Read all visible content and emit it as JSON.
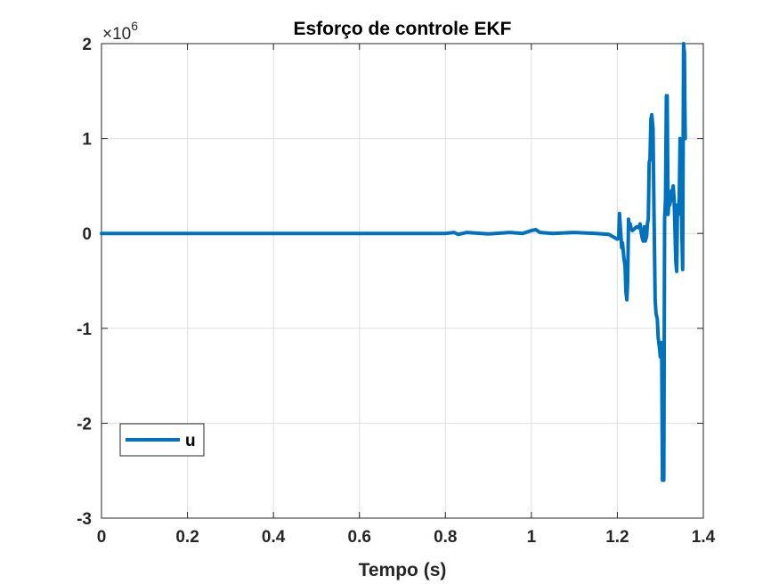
{
  "chart_data": {
    "type": "line",
    "title": "Esforço de controle EKF",
    "xlabel": "Tempo (s)",
    "ylabel": "",
    "xlim": [
      0,
      1.4
    ],
    "ylim": [
      -3,
      2
    ],
    "y_multiplier": "×10",
    "y_multiplier_exp": "6",
    "xticks": [
      0,
      0.2,
      0.4,
      0.6,
      0.8,
      1,
      1.2,
      1.4
    ],
    "xtick_labels": [
      "0",
      "0.2",
      "0.4",
      "0.6",
      "0.8",
      "1",
      "1.2",
      "1.4"
    ],
    "yticks": [
      -3,
      -2,
      -1,
      0,
      1,
      2
    ],
    "ytick_labels": [
      "-3",
      "-2",
      "-1",
      "0",
      "1",
      "2"
    ],
    "grid": true,
    "legend_position": "lower-left",
    "color": "#0072BD",
    "series": [
      {
        "name": "u",
        "x": [
          0,
          0.2,
          0.4,
          0.6,
          0.8,
          0.82,
          0.83,
          0.85,
          0.9,
          0.95,
          0.98,
          1.0,
          1.01,
          1.02,
          1.05,
          1.1,
          1.15,
          1.18,
          1.2,
          1.203,
          1.205,
          1.208,
          1.21,
          1.212,
          1.215,
          1.218,
          1.22,
          1.222,
          1.224,
          1.226,
          1.228,
          1.23,
          1.232,
          1.235,
          1.24,
          1.245,
          1.25,
          1.253,
          1.255,
          1.258,
          1.26,
          1.263,
          1.265,
          1.268,
          1.27,
          1.272,
          1.274,
          1.276,
          1.278,
          1.28,
          1.283,
          1.285,
          1.288,
          1.29,
          1.293,
          1.295,
          1.298,
          1.3,
          1.303,
          1.305,
          1.308,
          1.31,
          1.312,
          1.314,
          1.316,
          1.318,
          1.32,
          1.322,
          1.324,
          1.326,
          1.328,
          1.33,
          1.332,
          1.334,
          1.336,
          1.338,
          1.34,
          1.342,
          1.344,
          1.346,
          1.348,
          1.35,
          1.352,
          1.354,
          1.356,
          1.357,
          1.358
        ],
        "y": [
          0,
          0,
          0,
          0,
          0,
          0.01,
          -0.01,
          0.01,
          -0.005,
          0.01,
          0.0,
          0.03,
          0.04,
          0.01,
          0.0,
          0.01,
          0.0,
          -0.01,
          -0.06,
          -0.05,
          0.21,
          0.0,
          -0.15,
          -0.1,
          -0.25,
          -0.35,
          -0.62,
          -0.7,
          -0.5,
          0.15,
          0.05,
          0.1,
          0.05,
          0.03,
          0.05,
          0.07,
          0.06,
          0.1,
          0.02,
          -0.05,
          -0.08,
          0.07,
          -0.08,
          -0.03,
          0.1,
          0.15,
          0.75,
          0.78,
          1.2,
          1.25,
          1.1,
          0.3,
          -0.7,
          -0.85,
          -0.9,
          -1.1,
          -1.2,
          -1.3,
          -1.15,
          -2.6,
          -2.6,
          0.15,
          0.35,
          1.45,
          1.45,
          0.2,
          0.35,
          0.3,
          0.35,
          0.45,
          0.45,
          0.5,
          0.35,
          0.05,
          -0.3,
          -0.4,
          0.3,
          0.2,
          0.4,
          1.0,
          0.9,
          0.0,
          -0.38,
          2.0,
          1.9,
          1.4,
          1.0
        ]
      }
    ]
  }
}
